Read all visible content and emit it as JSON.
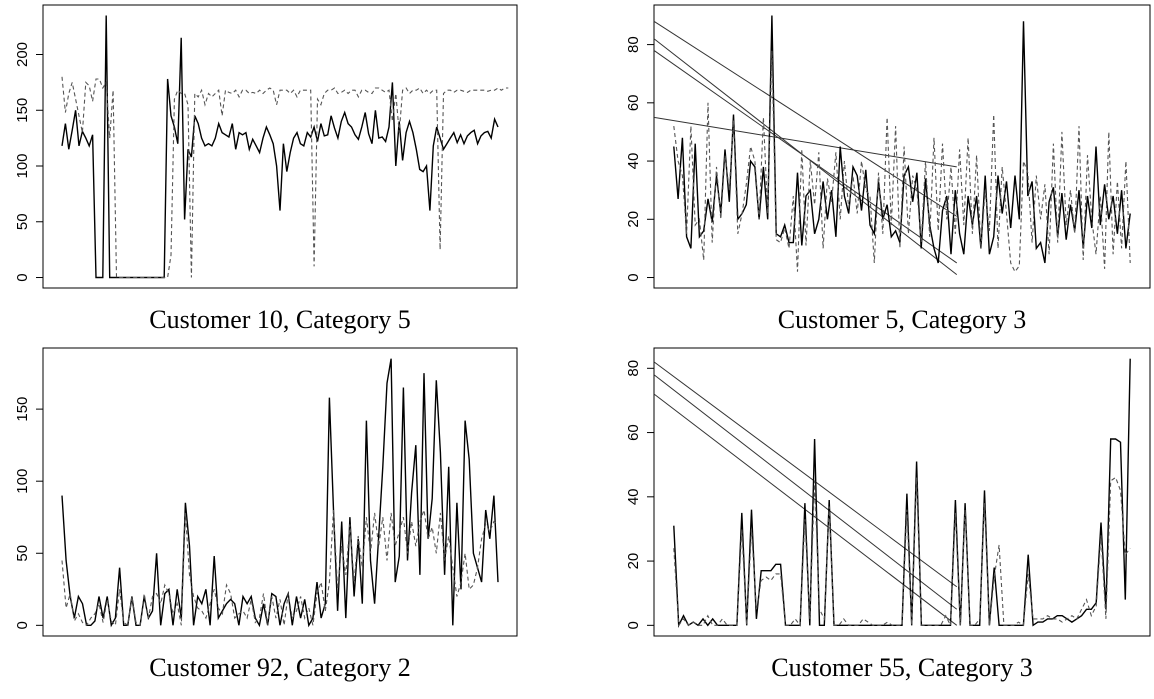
{
  "chart_data": [
    {
      "type": "line",
      "title": "Customer 10, Category 5",
      "xlabel": "",
      "ylabel": "",
      "ylim": [
        0,
        235
      ],
      "yticks": [
        0,
        50,
        100,
        150,
        200
      ],
      "series": [
        {
          "style": "solid",
          "color": "#000000",
          "values": [
            118,
            138,
            115,
            132,
            150,
            118,
            131,
            125,
            118,
            128,
            0,
            0,
            0,
            235,
            0,
            0,
            0,
            0,
            0,
            0,
            0,
            0,
            0,
            0,
            0,
            0,
            0,
            0,
            0,
            0,
            0,
            178,
            145,
            135,
            120,
            215,
            52,
            115,
            108,
            145,
            138,
            125,
            118,
            120,
            118,
            125,
            138,
            130,
            128,
            126,
            138,
            115,
            130,
            128,
            130,
            115,
            124,
            118,
            112,
            125,
            135,
            128,
            120,
            100,
            60,
            120,
            95,
            112,
            125,
            130,
            120,
            118,
            130,
            126,
            135,
            122,
            138,
            127,
            128,
            145,
            134,
            125,
            140,
            148,
            138,
            135,
            128,
            124,
            135,
            148,
            129,
            120,
            150,
            125,
            126,
            122,
            135,
            175,
            100,
            140,
            105,
            130,
            140,
            130,
            115,
            97,
            95,
            100,
            60,
            118,
            135,
            125,
            115,
            120,
            125,
            130,
            121,
            128,
            120,
            127,
            130,
            132,
            120,
            127,
            130,
            131,
            125,
            142,
            135
          ]
        },
        {
          "style": "dashed",
          "color": "#555555",
          "values": [
            180,
            148,
            165,
            175,
            160,
            145,
            130,
            175,
            172,
            158,
            178,
            178,
            170,
            175,
            125,
            168,
            0,
            0,
            0,
            0,
            0,
            0,
            0,
            0,
            0,
            0,
            0,
            0,
            0,
            0,
            0,
            0,
            20,
            160,
            168,
            165,
            165,
            155,
            0,
            165,
            162,
            168,
            155,
            165,
            162,
            165,
            168,
            145,
            168,
            166,
            165,
            168,
            162,
            168,
            168,
            165,
            166,
            165,
            168,
            165,
            168,
            170,
            168,
            155,
            168,
            168,
            168,
            165,
            168,
            162,
            168,
            168,
            168,
            168,
            10,
            160,
            155,
            165,
            168,
            168,
            170,
            165,
            166,
            168,
            165,
            168,
            168,
            162,
            168,
            168,
            166,
            165,
            170,
            170,
            168,
            166,
            168,
            140,
            165,
            130,
            168,
            170,
            165,
            168,
            168,
            170,
            165,
            168,
            165,
            168,
            168,
            25,
            165,
            168,
            168,
            166,
            168,
            168,
            167,
            166,
            168,
            168,
            168,
            168,
            168,
            167,
            168,
            168,
            170,
            168,
            170,
            170
          ]
        }
      ]
    },
    {
      "type": "line",
      "title": "Customer 5, Category 3",
      "xlabel": "",
      "ylabel": "",
      "ylim": [
        0,
        90
      ],
      "yticks": [
        0,
        20,
        40,
        60,
        80
      ],
      "series": [
        {
          "style": "solid",
          "color": "#000000",
          "values": [
            45,
            27,
            48,
            14,
            10,
            46,
            14,
            16,
            27,
            19,
            35,
            22,
            44,
            26,
            56,
            20,
            22,
            25,
            40,
            38,
            20,
            38,
            20,
            90,
            15,
            14,
            18,
            12,
            12,
            36,
            11,
            28,
            30,
            15,
            20,
            33,
            20,
            30,
            14,
            45,
            28,
            22,
            38,
            35,
            23,
            37,
            18,
            15,
            33,
            20,
            25,
            14,
            16,
            12,
            35,
            38,
            26,
            36,
            10,
            34,
            18,
            10,
            5,
            23,
            28,
            8,
            30,
            15,
            8,
            28,
            18,
            28,
            10,
            35,
            8,
            14,
            35,
            22,
            33,
            17,
            35,
            20,
            88,
            28,
            33,
            10,
            12,
            5,
            26,
            31,
            14,
            29,
            13,
            25,
            16,
            30,
            10,
            28,
            17,
            45,
            18,
            32,
            20,
            28,
            15,
            30,
            10,
            22
          ]
        },
        {
          "style": "dashed",
          "color": "#555555",
          "values": [
            52,
            40,
            35,
            15,
            52,
            18,
            20,
            6,
            60,
            12,
            38,
            20,
            42,
            30,
            54,
            15,
            22,
            32,
            45,
            40,
            20,
            55,
            22,
            78,
            13,
            12,
            17,
            10,
            28,
            2,
            44,
            11,
            40,
            25,
            43,
            10,
            34,
            26,
            43,
            20,
            40,
            24,
            35,
            22,
            40,
            30,
            28,
            5,
            36,
            15,
            55,
            18,
            52,
            10,
            45,
            15,
            35,
            30,
            12,
            40,
            14,
            48,
            16,
            46,
            20,
            38,
            15,
            44,
            18,
            48,
            15,
            42,
            10,
            30,
            16,
            56,
            10,
            38,
            22,
            5,
            2,
            4,
            40,
            36,
            12,
            35,
            20,
            32,
            8,
            46,
            12,
            50,
            18,
            30,
            15,
            52,
            6,
            42,
            20,
            8,
            28,
            3,
            50,
            8,
            33,
            10,
            40,
            5
          ]
        }
      ],
      "trend_lines": [
        [
          55,
          38
        ],
        [
          88,
          21
        ],
        [
          82,
          1
        ],
        [
          78,
          5
        ]
      ]
    },
    {
      "type": "line",
      "title": "Customer 92, Category 2",
      "xlabel": "",
      "ylabel": "",
      "ylim": [
        0,
        185
      ],
      "yticks": [
        0,
        50,
        100,
        150
      ],
      "series": [
        {
          "style": "solid",
          "color": "#000000",
          "values": [
            90,
            45,
            20,
            5,
            20,
            15,
            0,
            0,
            3,
            20,
            5,
            20,
            0,
            5,
            40,
            0,
            0,
            20,
            0,
            0,
            20,
            5,
            10,
            50,
            0,
            22,
            25,
            0,
            25,
            5,
            85,
            55,
            0,
            20,
            15,
            25,
            0,
            48,
            5,
            10,
            15,
            18,
            15,
            0,
            20,
            15,
            20,
            5,
            0,
            15,
            0,
            22,
            20,
            0,
            15,
            22,
            0,
            20,
            5,
            18,
            0,
            5,
            30,
            5,
            15,
            158,
            80,
            10,
            72,
            5,
            75,
            20,
            60,
            15,
            142,
            45,
            15,
            62,
            110,
            168,
            185,
            30,
            48,
            165,
            45,
            92,
            125,
            35,
            175,
            60,
            88,
            170,
            120,
            35,
            110,
            0,
            85,
            25,
            142,
            115,
            50,
            40,
            30,
            80,
            60,
            90,
            30
          ]
        },
        {
          "style": "dashed",
          "color": "#555555",
          "values": [
            45,
            12,
            22,
            3,
            8,
            2,
            0,
            5,
            8,
            15,
            2,
            18,
            3,
            0,
            25,
            2,
            0,
            20,
            2,
            0,
            22,
            5,
            20,
            22,
            15,
            28,
            22,
            8,
            15,
            0,
            78,
            35,
            20,
            12,
            10,
            5,
            15,
            25,
            12,
            8,
            28,
            22,
            5,
            8,
            10,
            5,
            18,
            2,
            5,
            22,
            0,
            20,
            5,
            18,
            0,
            22,
            5,
            10,
            20,
            5,
            12,
            0,
            22,
            30,
            10,
            30,
            80,
            25,
            55,
            35,
            70,
            30,
            62,
            40,
            75,
            50,
            78,
            55,
            75,
            45,
            78,
            55,
            65,
            75,
            50,
            72,
            55,
            72,
            80,
            60,
            68,
            50,
            78,
            45,
            62,
            40,
            20,
            30,
            50,
            25,
            28,
            40,
            60,
            70,
            65,
            72,
            70
          ]
        }
      ]
    },
    {
      "type": "line",
      "title": "Customer 55, Category 3",
      "xlabel": "",
      "ylabel": "",
      "ylim": [
        0,
        83
      ],
      "yticks": [
        0,
        20,
        40,
        60,
        80
      ],
      "series": [
        {
          "style": "solid",
          "color": "#000000",
          "values": [
            31,
            0,
            3,
            0,
            1,
            0,
            2,
            0,
            2,
            0,
            0,
            0,
            0,
            0,
            35,
            0,
            36,
            2,
            17,
            17,
            17,
            19,
            19,
            0,
            0,
            0,
            0,
            38,
            0,
            58,
            0,
            0,
            39,
            0,
            0,
            0,
            0,
            0,
            0,
            0,
            0,
            0,
            0,
            0,
            0,
            0,
            0,
            0,
            41,
            0,
            51,
            0,
            0,
            0,
            0,
            0,
            0,
            0,
            39,
            0,
            38,
            0,
            0,
            0,
            42,
            0,
            18,
            0,
            0,
            0,
            0,
            0,
            0,
            22,
            0,
            1,
            1,
            2,
            2,
            3,
            3,
            2,
            1,
            2,
            3,
            5,
            5,
            7,
            32,
            5,
            58,
            58,
            57,
            8,
            83
          ]
        },
        {
          "style": "dashed",
          "color": "#555555",
          "values": [
            24,
            0,
            2,
            0,
            1,
            0,
            0,
            3,
            0,
            0,
            2,
            0,
            0,
            0,
            30,
            0,
            30,
            5,
            14,
            15,
            14,
            16,
            16,
            0,
            0,
            2,
            0,
            33,
            2,
            45,
            5,
            2,
            37,
            0,
            0,
            2,
            0,
            0,
            0,
            2,
            1,
            0,
            0,
            0,
            1,
            0,
            0,
            0,
            36,
            0,
            46,
            0,
            0,
            0,
            0,
            0,
            3,
            0,
            35,
            0,
            36,
            0,
            0,
            2,
            38,
            0,
            15,
            25,
            0,
            0,
            0,
            1,
            0,
            16,
            2,
            2,
            2,
            3,
            2,
            2,
            1,
            2,
            3,
            2,
            5,
            8,
            3,
            6,
            28,
            2,
            45,
            46,
            42,
            22,
            24
          ]
        }
      ],
      "trend_lines": [
        [
          72,
          0
        ],
        [
          82,
          12
        ],
        [
          78,
          5
        ]
      ]
    }
  ]
}
